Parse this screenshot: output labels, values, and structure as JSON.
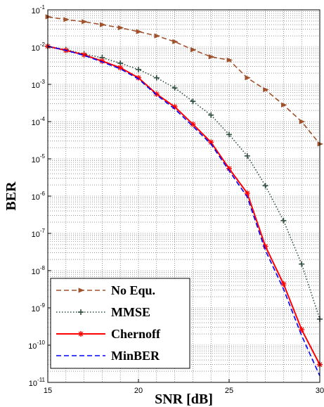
{
  "chart_data": {
    "type": "line",
    "xlabel": "SNR [dB]",
    "ylabel": "BER",
    "xlim": [
      15,
      30
    ],
    "ylim": [
      1e-11,
      0.1
    ],
    "yscale": "log",
    "grid": "minor-dotted",
    "legend_position": "bottom-left",
    "x_ticks": [
      "15",
      "20",
      "25",
      "30"
    ],
    "y_ticks": [
      {
        "base": "10",
        "exp": "-1",
        "value": 0.1
      },
      {
        "base": "10",
        "exp": "-2",
        "value": 0.01
      },
      {
        "base": "10",
        "exp": "-3",
        "value": 0.001
      },
      {
        "base": "10",
        "exp": "-4",
        "value": 0.0001
      },
      {
        "base": "10",
        "exp": "-5",
        "value": 1e-05
      },
      {
        "base": "10",
        "exp": "-6",
        "value": 1e-06
      },
      {
        "base": "10",
        "exp": "-7",
        "value": 1e-07
      },
      {
        "base": "10",
        "exp": "-8",
        "value": 1e-08
      },
      {
        "base": "10",
        "exp": "-9",
        "value": 1e-09
      },
      {
        "base": "10",
        "exp": "-10",
        "value": 1e-10
      },
      {
        "base": "10",
        "exp": "-11",
        "value": 1e-11
      }
    ],
    "series": [
      {
        "name": "No Equ.",
        "color": "#a0522d",
        "style": "dashed",
        "marker": "triangle-right",
        "x": [
          15,
          16,
          17,
          18,
          19,
          20,
          21,
          22,
          23,
          24,
          25,
          26,
          27,
          28,
          29,
          30
        ],
        "y": [
          0.065,
          0.055,
          0.048,
          0.04,
          0.033,
          0.026,
          0.02,
          0.014,
          0.0085,
          0.0055,
          0.0045,
          0.0015,
          0.00072,
          0.00028,
          0.0001,
          2.5e-05
        ]
      },
      {
        "name": "MMSE",
        "color": "#2f4f3f",
        "style": "dotted",
        "marker": "plus",
        "x": [
          15,
          16,
          17,
          18,
          19,
          20,
          21,
          22,
          23,
          24,
          25,
          26,
          27,
          28,
          29,
          30
        ],
        "y": [
          0.0105,
          0.0085,
          0.0065,
          0.0052,
          0.0037,
          0.0025,
          0.0015,
          0.0008,
          0.00035,
          0.00015,
          4.5e-05,
          1.2e-05,
          1.9e-06,
          2.2e-07,
          1.5e-08,
          5e-10
        ]
      },
      {
        "name": "Chernoff",
        "color": "#ff0000",
        "style": "solid",
        "marker": "star",
        "x": [
          15,
          16,
          17,
          18,
          19,
          20,
          21,
          22,
          23,
          24,
          25,
          26,
          27,
          28,
          29,
          30
        ],
        "y": [
          0.0105,
          0.0082,
          0.0062,
          0.0042,
          0.0028,
          0.0015,
          0.00055,
          0.00025,
          8.5e-05,
          2.8e-05,
          5.5e-06,
          1.2e-06,
          4.5e-08,
          4.4e-09,
          2.6e-10,
          3e-11
        ]
      },
      {
        "name": "MinBER",
        "color": "#0000ff",
        "style": "dashed",
        "marker": "none",
        "x": [
          15,
          16,
          17,
          18,
          19,
          20,
          21,
          22,
          23,
          24,
          25,
          26,
          27,
          28,
          29,
          30
        ],
        "y": [
          0.0105,
          0.0082,
          0.006,
          0.004,
          0.0026,
          0.0014,
          0.00052,
          0.00022,
          7.5e-05,
          2.5e-05,
          4.8e-06,
          9.5e-07,
          3.5e-08,
          3.2e-09,
          1.8e-10,
          1.5e-11
        ]
      }
    ]
  }
}
